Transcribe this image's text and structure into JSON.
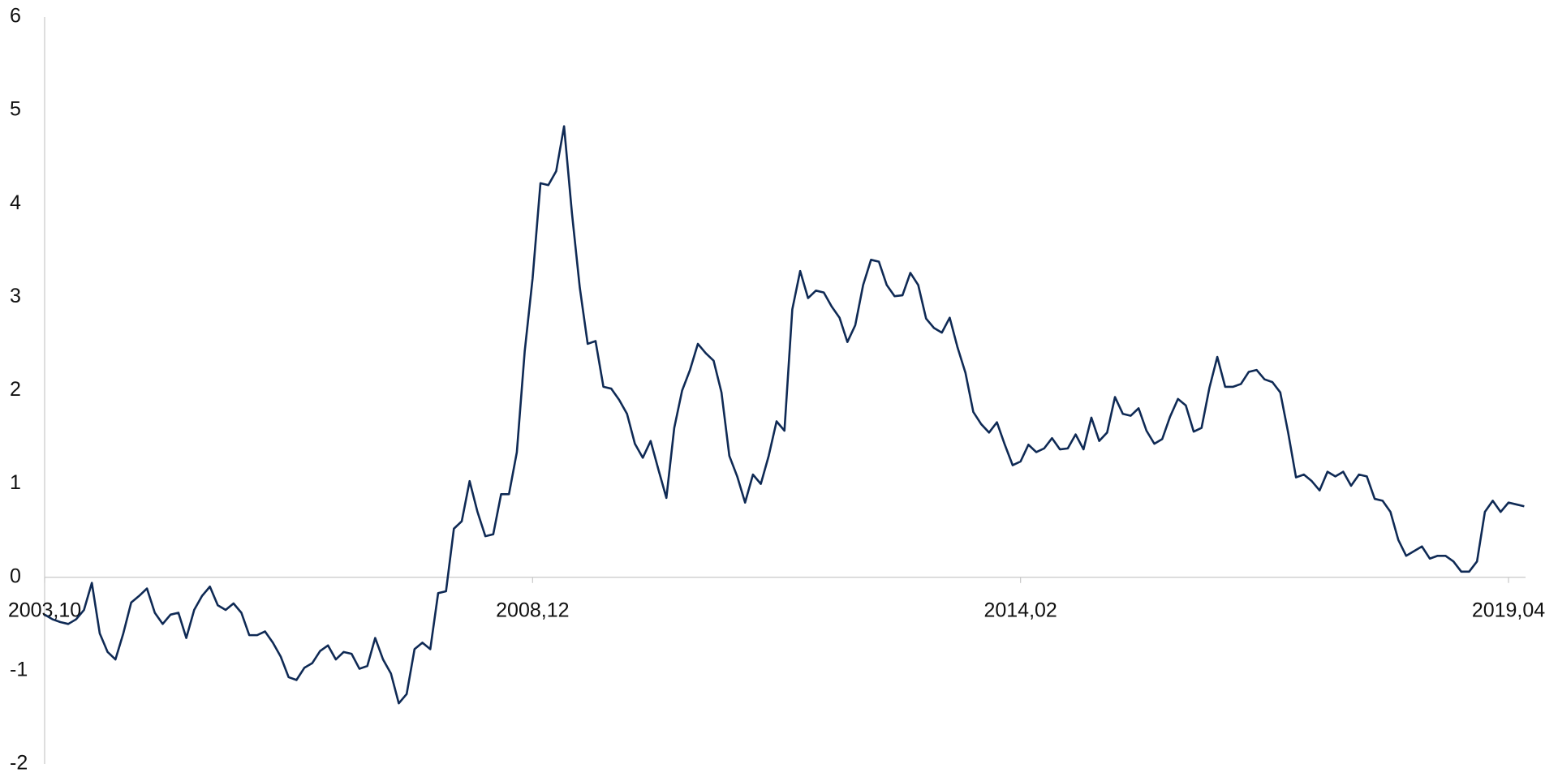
{
  "chart_data": {
    "type": "line",
    "categories": [
      "2003,10",
      null,
      null,
      null,
      null,
      null,
      null,
      null,
      null,
      null,
      null,
      null,
      null,
      null,
      null,
      null,
      null,
      null,
      null,
      null,
      null,
      null,
      null,
      null,
      null,
      null,
      null,
      null,
      null,
      null,
      null,
      null,
      null,
      null,
      null,
      null,
      null,
      null,
      null,
      null,
      null,
      null,
      null,
      null,
      null,
      null,
      null,
      null,
      null,
      null,
      null,
      null,
      null,
      null,
      null,
      null,
      null,
      null,
      null,
      null,
      null,
      null,
      "2008,12",
      null,
      null,
      null,
      null,
      null,
      null,
      null,
      null,
      null,
      null,
      null,
      null,
      null,
      null,
      null,
      null,
      null,
      null,
      null,
      null,
      null,
      null,
      null,
      null,
      null,
      null,
      null,
      null,
      null,
      null,
      null,
      null,
      null,
      null,
      null,
      null,
      null,
      null,
      null,
      null,
      null,
      null,
      null,
      null,
      null,
      null,
      null,
      null,
      null,
      null,
      null,
      null,
      null,
      null,
      null,
      null,
      null,
      null,
      null,
      null,
      null,
      "2014,02",
      null,
      null,
      null,
      null,
      null,
      null,
      null,
      null,
      null,
      null,
      null,
      null,
      null,
      null,
      null,
      null,
      null,
      null,
      null,
      null,
      null,
      null,
      null,
      null,
      null,
      null,
      null,
      null,
      null,
      null,
      null,
      null,
      null,
      null,
      null,
      null,
      null,
      null,
      null,
      null,
      null,
      null,
      null,
      null,
      null,
      null,
      null,
      null,
      null,
      null,
      null,
      null,
      null,
      null,
      null,
      null,
      null,
      null,
      null,
      null,
      null,
      "2019,04",
      null,
      null
    ],
    "values": [
      -0.4,
      -0.45,
      -0.48,
      -0.5,
      -0.45,
      -0.35,
      -0.06,
      -0.6,
      -0.8,
      -0.88,
      -0.6,
      -0.27,
      -0.2,
      -0.12,
      -0.38,
      -0.5,
      -0.4,
      -0.38,
      -0.65,
      -0.35,
      -0.2,
      -0.1,
      -0.3,
      -0.35,
      -0.28,
      -0.38,
      -0.62,
      -0.62,
      -0.58,
      -0.7,
      -0.85,
      -1.07,
      -1.1,
      -0.97,
      -0.92,
      -0.79,
      -0.73,
      -0.88,
      -0.8,
      -0.82,
      -0.98,
      -0.95,
      -0.65,
      -0.88,
      -1.03,
      -1.35,
      -1.25,
      -0.77,
      -0.7,
      -0.77,
      -0.17,
      -0.15,
      0.52,
      0.6,
      1.03,
      0.7,
      0.44,
      0.46,
      0.89,
      0.89,
      1.34,
      2.42,
      3.2,
      4.22,
      4.2,
      4.35,
      4.83,
      3.9,
      3.1,
      2.5,
      2.53,
      2.04,
      2.02,
      1.9,
      1.75,
      1.43,
      1.28,
      1.46,
      1.15,
      0.85,
      1.6,
      2.0,
      2.22,
      2.5,
      2.4,
      2.32,
      1.98,
      1.3,
      1.08,
      0.8,
      1.1,
      1.0,
      1.3,
      1.67,
      1.57,
      2.87,
      3.28,
      2.99,
      3.07,
      3.05,
      2.9,
      2.78,
      2.52,
      2.7,
      3.13,
      3.4,
      3.38,
      3.13,
      3.01,
      3.02,
      3.26,
      3.13,
      2.77,
      2.67,
      2.62,
      2.78,
      2.46,
      2.19,
      1.77,
      1.64,
      1.55,
      1.66,
      1.42,
      1.2,
      1.24,
      1.42,
      1.34,
      1.38,
      1.49,
      1.37,
      1.38,
      1.53,
      1.37,
      1.71,
      1.46,
      1.55,
      1.93,
      1.75,
      1.73,
      1.81,
      1.57,
      1.43,
      1.48,
      1.72,
      1.91,
      1.84,
      1.56,
      1.6,
      2.03,
      2.36,
      2.04,
      2.04,
      2.07,
      2.2,
      2.22,
      2.12,
      2.09,
      1.98,
      1.55,
      1.07,
      1.1,
      1.03,
      0.93,
      1.13,
      1.08,
      1.13,
      0.98,
      1.1,
      1.08,
      0.84,
      0.82,
      0.7,
      0.4,
      0.23,
      0.28,
      0.33,
      0.2,
      0.23,
      0.23,
      0.17,
      0.06,
      0.06,
      0.17,
      0.7,
      0.82,
      0.7,
      0.8,
      0.78,
      0.76
    ],
    "color": "#0f2a55",
    "ylim": [
      -2,
      6
    ],
    "yticks": [
      -2,
      -1,
      0,
      1,
      2,
      3,
      4,
      5,
      6
    ]
  }
}
